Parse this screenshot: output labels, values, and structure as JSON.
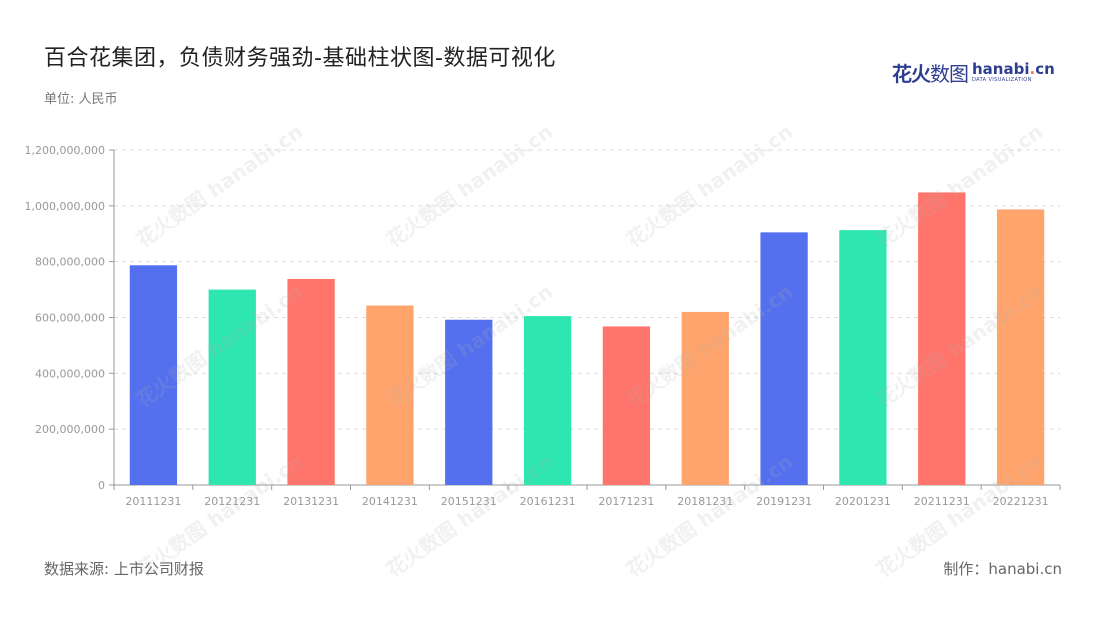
{
  "header": {
    "title": "百合花集团，负债财务强劲-基础柱状图-数据可视化",
    "unit": "单位: 人民币"
  },
  "logo": {
    "cn_bold": "花火",
    "cn_thin": "数图",
    "en_main_a": "hanabi",
    "en_dot": ".",
    "en_main_b": "cn",
    "en_sub": "DATA VISUALIZATION"
  },
  "footer": {
    "source": "数据来源: 上市公司财报",
    "credit": "制作：hanabi.cn"
  },
  "watermark_text": "花火数图 hanabi.cn",
  "colors": {
    "palette": [
      "#5470ee",
      "#2de6b0",
      "#ff746b",
      "#ffa46c"
    ],
    "grid": "#dddddd",
    "axis": "#999999",
    "tick_text": "#999999"
  },
  "chart_data": {
    "type": "bar",
    "categories": [
      "20111231",
      "20121231",
      "20131231",
      "20141231",
      "20151231",
      "20161231",
      "20171231",
      "20181231",
      "20191231",
      "20201231",
      "20211231",
      "20221231"
    ],
    "values": [
      787000000,
      700000000,
      738000000,
      643000000,
      592000000,
      605000000,
      568000000,
      620000000,
      905000000,
      913000000,
      1048000000,
      987000000
    ],
    "y_ticks": [
      "0",
      "200,000,000",
      "400,000,000",
      "600,000,000",
      "800,000,000",
      "1,000,000,000",
      "1,200,000,000"
    ],
    "ylim": [
      0,
      1200000000
    ],
    "grid": true,
    "color_cycle": "4 colors repeating"
  }
}
